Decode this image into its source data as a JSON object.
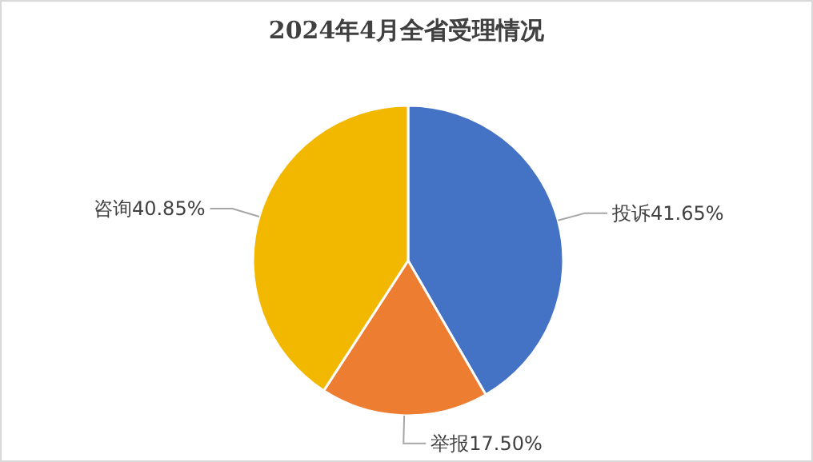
{
  "chart_data": {
    "type": "pie",
    "title": "2024年4月全省受理情况",
    "categories": [
      "投诉",
      "举报",
      "咨询"
    ],
    "values": [
      41.65,
      17.5,
      40.85
    ],
    "value_labels": [
      "41.65%",
      "17.50%",
      "40.85%"
    ],
    "colors": [
      "#4472c4",
      "#ed7d31",
      "#f2b800"
    ],
    "legend": false
  }
}
